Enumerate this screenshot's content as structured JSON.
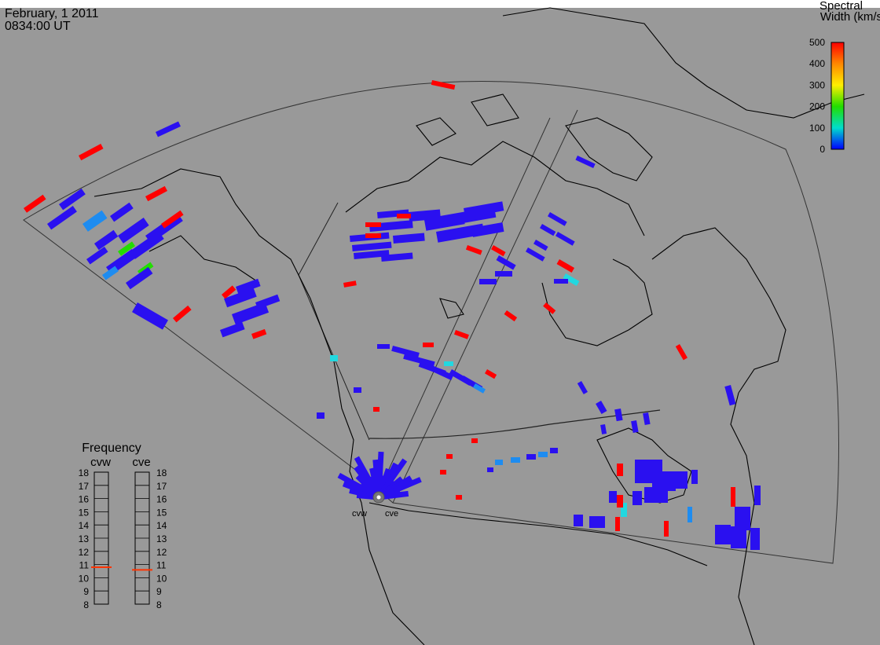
{
  "header": {
    "date": "February, 1 2011",
    "time": "0834:00 UT"
  },
  "colorbar": {
    "title_line1": "Spectral",
    "title_line2": "Width (km/s)",
    "ticks": [
      "500",
      "400",
      "300",
      "200",
      "100",
      "0"
    ],
    "colors": [
      "#ff0000",
      "#ff8800",
      "#ffee00",
      "#22dd00",
      "#00ddcc",
      "#0000ff"
    ]
  },
  "frequency_panel": {
    "title": "Frequency",
    "radars": [
      "cvw",
      "cve"
    ],
    "levels": [
      "18",
      "17",
      "16",
      "15",
      "14",
      "13",
      "12",
      "11",
      "10",
      "9",
      "8"
    ],
    "cvw_mhz": 10.8,
    "cve_mhz": 10.6,
    "marker_color": "#ff3300"
  },
  "radar_labels": [
    "cvw",
    "cve"
  ],
  "colors": {
    "background_gray": "#999999",
    "coast": "#000000",
    "fov": "#333333",
    "low_width": "#2a10f0",
    "mid_width": "#1e8cf0",
    "cyan_width": "#22d8e0",
    "green_width": "#22dd00",
    "high_width": "#ff0000"
  }
}
